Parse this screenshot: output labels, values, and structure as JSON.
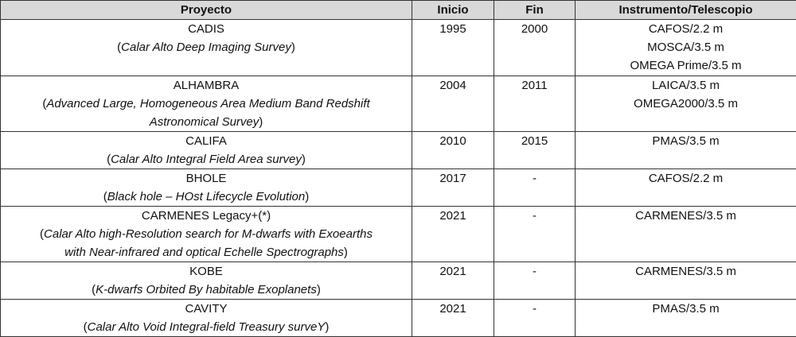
{
  "headers": [
    "Proyecto",
    "Inicio",
    "Fin",
    "Instrumento/Telescopio"
  ],
  "rows": [
    {
      "name": "CADIS",
      "full": "Calar Alto Deep Imaging Survey",
      "full_lines": [
        "Calar Alto Deep Imaging Survey"
      ],
      "inicio": "1995",
      "fin": "2000",
      "instruments": [
        "CAFOS/2.2 m",
        "MOSCA/3.5 m",
        "OMEGA Prime/3.5 m"
      ]
    },
    {
      "name": "ALHAMBRA",
      "full_lines": [
        "Advanced Large, Homogeneous Area Medium Band Redshift",
        "Astronomical Survey"
      ],
      "inicio": "2004",
      "fin": "2011",
      "instruments": [
        "LAICA/3.5 m",
        "OMEGA2000/3.5 m"
      ]
    },
    {
      "name": "CALIFA",
      "full_lines": [
        "Calar Alto Integral Field Area survey"
      ],
      "inicio": "2010",
      "fin": "2015",
      "instruments": [
        "PMAS/3.5 m"
      ]
    },
    {
      "name": "BHOLE",
      "full_lines": [
        "Black hole – HOst Lifecycle Evolution"
      ],
      "inicio": "2017",
      "fin": "-",
      "instruments": [
        "CAFOS/2.2 m"
      ]
    },
    {
      "name": "CARMENES Legacy+(*)",
      "full_lines": [
        "Calar Alto high-Resolution search for M-dwarfs with Exoearths",
        "with Near-infrared and optical Echelle Spectrographs"
      ],
      "inicio": "2021",
      "fin": "-",
      "instruments": [
        "CARMENES/3.5 m"
      ]
    },
    {
      "name": "KOBE",
      "full_lines": [
        "K-dwarfs Orbited By habitable Exoplanets"
      ],
      "inicio": "2021",
      "fin": "-",
      "instruments": [
        "CARMENES/3.5 m"
      ]
    },
    {
      "name": "CAVITY",
      "full_lines": [
        "Calar Alto Void Integral-field Treasury surveY"
      ],
      "inicio": "2021",
      "fin": "-",
      "instruments": [
        "PMAS/3.5 m"
      ]
    }
  ]
}
